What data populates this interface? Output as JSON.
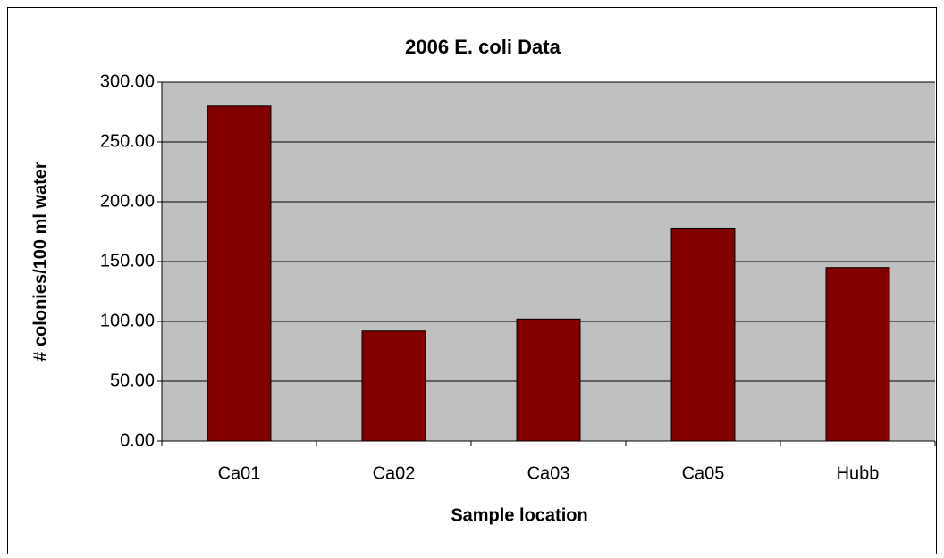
{
  "chart_data": {
    "type": "bar",
    "title": "2006 E. coli Data",
    "x_label": "Sample location",
    "y_label": "# colonies/100 ml water",
    "categories": [
      "Ca01",
      "Ca02",
      "Ca03",
      "Ca05",
      "Hubb"
    ],
    "values": [
      280,
      92,
      102,
      178,
      145
    ],
    "color": "#800000",
    "ylim": [
      0,
      300
    ],
    "yticks": [
      {
        "value": 0,
        "label": "0.00"
      },
      {
        "value": 50,
        "label": "50.00"
      },
      {
        "value": 100,
        "label": "100.00"
      },
      {
        "value": 150,
        "label": "150.00"
      },
      {
        "value": 200,
        "label": "200.00"
      },
      {
        "value": 250,
        "label": "250.00"
      },
      {
        "value": 300,
        "label": "300.00"
      }
    ],
    "grid": true
  }
}
